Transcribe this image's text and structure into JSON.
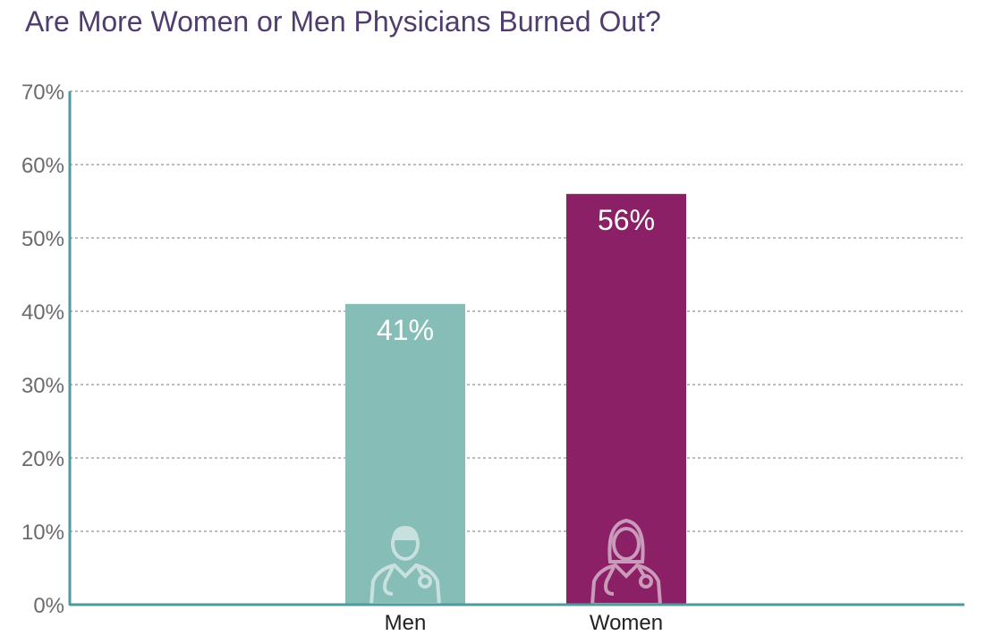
{
  "chart_data": {
    "type": "bar",
    "title": "Are More Women or Men Physicians Burned Out?",
    "xlabel": "",
    "ylabel": "",
    "categories": [
      "Men",
      "Women"
    ],
    "values": [
      41,
      56
    ],
    "data_labels": [
      "41%",
      "56%"
    ],
    "ylim": [
      0,
      70
    ],
    "yticks": [
      0,
      10,
      20,
      30,
      40,
      50,
      60,
      70
    ],
    "ytick_labels": [
      "0%",
      "10%",
      "20%",
      "30%",
      "40%",
      "50%",
      "60%",
      "70%"
    ],
    "grid": true,
    "legend": "none",
    "bar_icons": [
      "male-doctor-icon",
      "female-doctor-icon"
    ]
  },
  "colors": {
    "title": "#4f3d6e",
    "axis": "#4e9a9e",
    "grid": "#7a7a7a",
    "bars": [
      "#86bdb6",
      "#8b2066"
    ],
    "icon": "#ffffff"
  }
}
